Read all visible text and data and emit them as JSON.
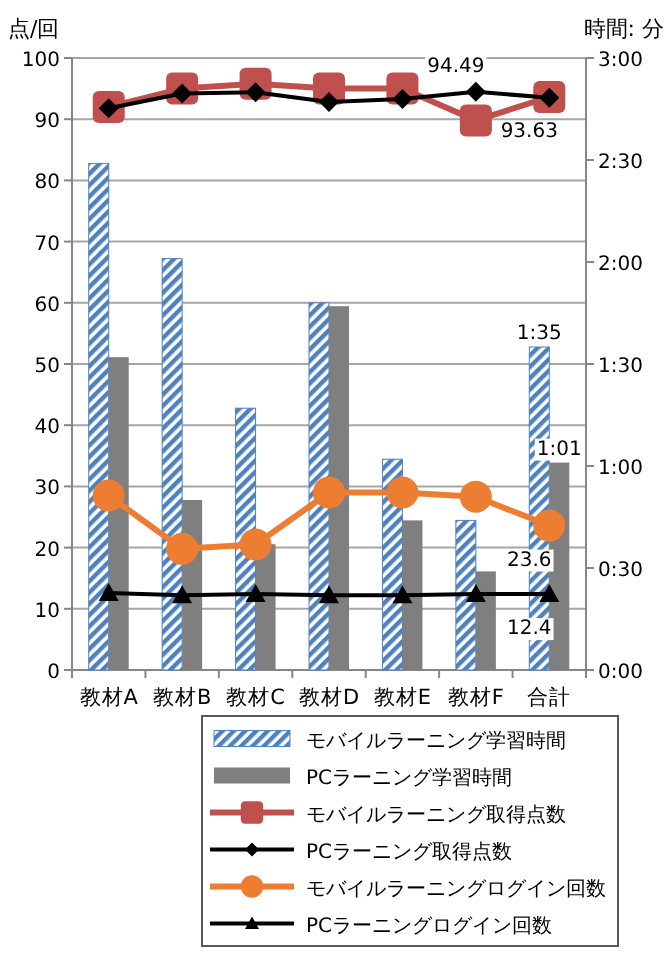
{
  "chart_data": {
    "type": "bar",
    "ylabel": "点/回",
    "y2label": "時間: 分",
    "categories": [
      "教材A",
      "教材B",
      "教材C",
      "教材D",
      "教材E",
      "教材F",
      "合計"
    ],
    "ylim": [
      0,
      100
    ],
    "yticks": [
      0,
      10,
      20,
      30,
      40,
      50,
      60,
      70,
      80,
      90,
      100
    ],
    "y2lim": [
      0,
      180
    ],
    "y2ticks": [
      {
        "value": 0,
        "label": "0:00"
      },
      {
        "value": 30,
        "label": "0:30"
      },
      {
        "value": 60,
        "label": "1:00"
      },
      {
        "value": 90,
        "label": "1:30"
      },
      {
        "value": 120,
        "label": "2:00"
      },
      {
        "value": 150,
        "label": "2:30"
      },
      {
        "value": 180,
        "label": "3:00"
      }
    ],
    "grid": "y",
    "legend": "bottom",
    "series": [
      {
        "name": "モバイルラーニング学習時間",
        "axis": "y2",
        "color": "#4f81bd",
        "values": [
          149,
          121,
          77,
          108,
          62,
          44,
          95
        ],
        "value_labels": [
          null,
          null,
          null,
          null,
          null,
          null,
          "1:35"
        ]
      },
      {
        "name": "PCラーニング学習時間",
        "axis": "y2",
        "color": "#7f7f7f",
        "values": [
          92,
          50,
          37,
          107,
          44,
          29,
          61
        ],
        "value_labels": [
          null,
          null,
          null,
          null,
          null,
          null,
          "1:01"
        ]
      },
      {
        "name": "モバイルラーニング取得点数",
        "type": "line",
        "marker": "square",
        "color": "#c0504d",
        "values": [
          92,
          95,
          95.8,
          95,
          95,
          89.8,
          93.63
        ],
        "value_labels": [
          null,
          null,
          null,
          null,
          null,
          null,
          "93.63"
        ]
      },
      {
        "name": "PCラーニング取得点数",
        "type": "line",
        "marker": "diamond",
        "color": "#000000",
        "values": [
          91.8,
          94.2,
          94.4,
          92.8,
          93.3,
          94.49,
          93.5
        ],
        "value_labels": [
          null,
          null,
          null,
          null,
          null,
          "94.49",
          null
        ]
      },
      {
        "name": "モバイルラーニングログイン回数",
        "type": "line",
        "marker": "circle",
        "color": "#ed7d31",
        "values": [
          28.5,
          19.8,
          20.5,
          29,
          29,
          28.3,
          23.6
        ],
        "value_labels": [
          null,
          null,
          null,
          null,
          null,
          null,
          "23.6"
        ]
      },
      {
        "name": "PCラーニングログイン回数",
        "type": "line",
        "marker": "triangle",
        "color": "#000000",
        "values": [
          12.6,
          12.2,
          12.4,
          12.2,
          12.2,
          12.4,
          12.4
        ],
        "value_labels": [
          null,
          null,
          null,
          null,
          null,
          null,
          "12.4"
        ]
      }
    ]
  }
}
